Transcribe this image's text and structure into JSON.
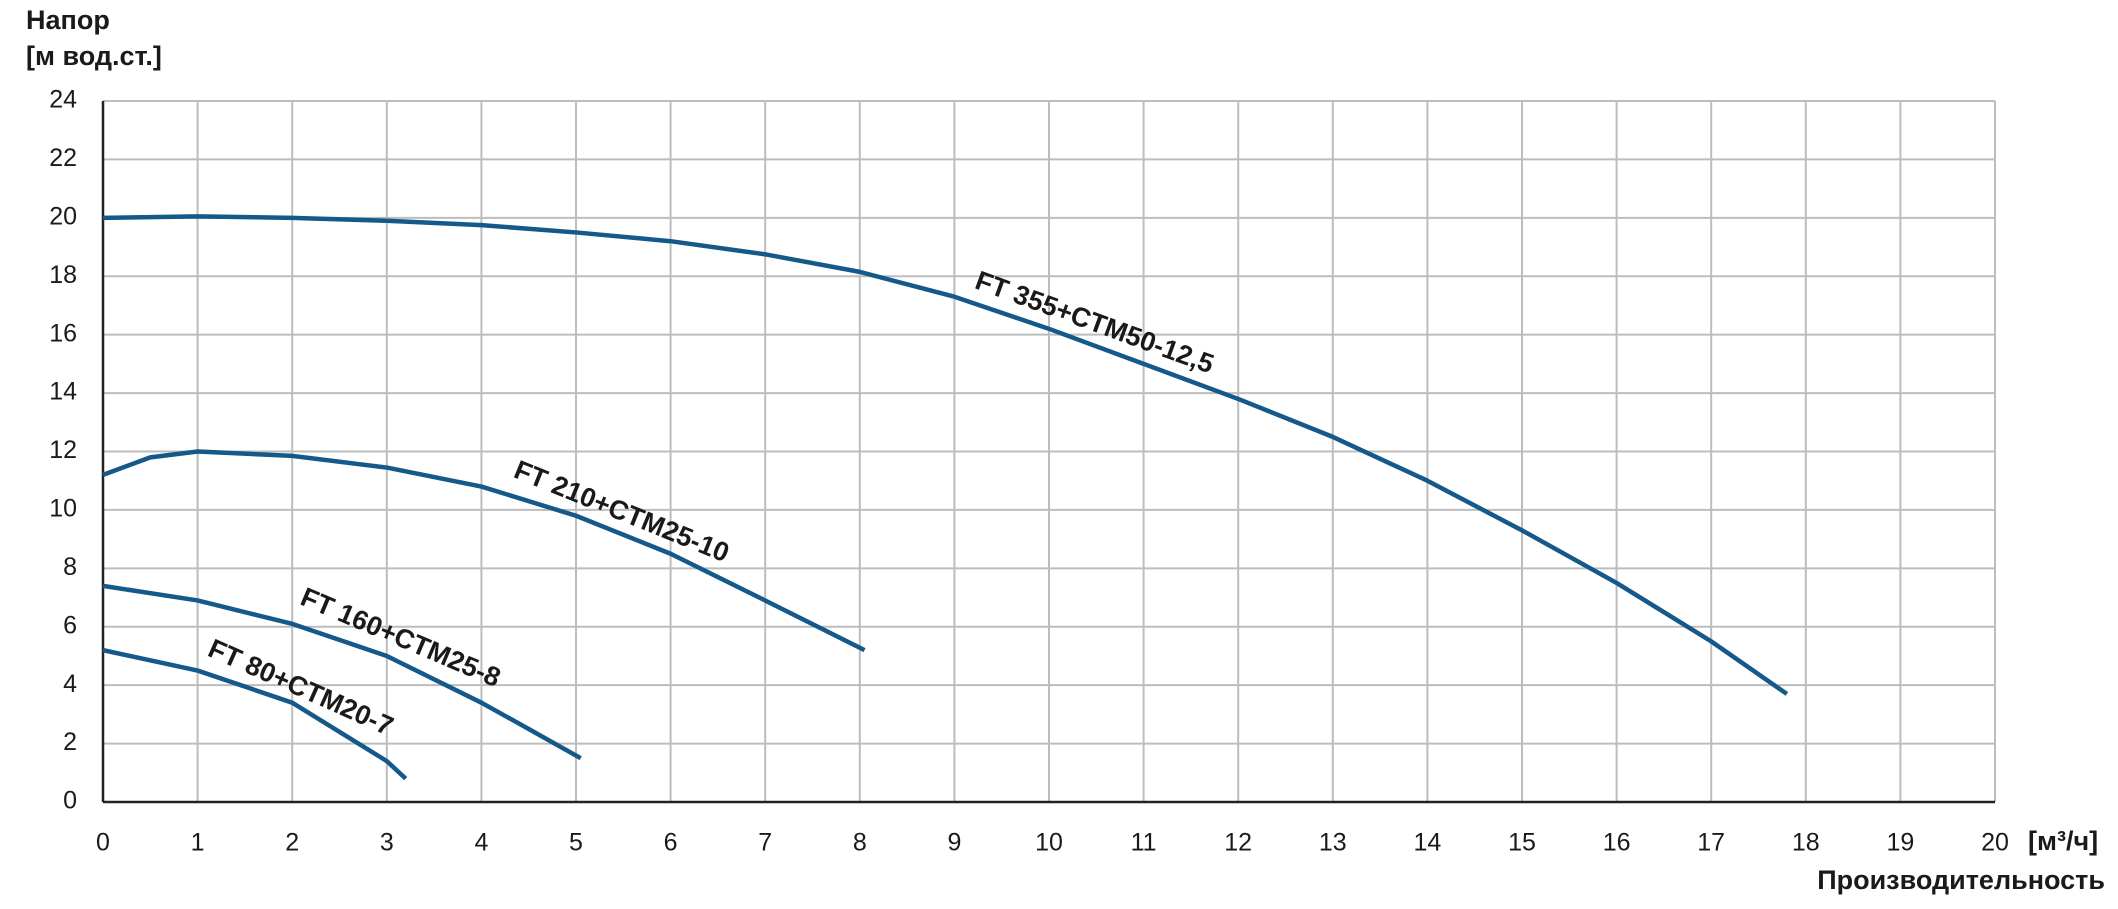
{
  "chart_data": {
    "type": "line",
    "y_label_line1": "Напор",
    "y_label_line2": "[м вод.ст.]",
    "x_unit": "[м³/ч]",
    "x_label": "Производительность",
    "xlim": [
      0,
      20
    ],
    "xticks": [
      0,
      1,
      2,
      3,
      4,
      5,
      6,
      7,
      8,
      9,
      10,
      11,
      12,
      13,
      14,
      15,
      16,
      17,
      18,
      19,
      20
    ],
    "ylim": [
      0,
      24
    ],
    "yticks": [
      0,
      2,
      4,
      6,
      8,
      10,
      12,
      14,
      16,
      18,
      20,
      22,
      24
    ],
    "grid": true,
    "series": [
      {
        "name": "FT 355+CTM50-12,5",
        "color": "#15598a",
        "x": [
          0,
          1,
          2,
          3,
          4,
          5,
          6,
          7,
          8,
          9,
          10,
          11,
          12,
          13,
          14,
          15,
          16,
          17,
          17.8
        ],
        "values": [
          20,
          20.05,
          20,
          19.9,
          19.75,
          19.5,
          19.2,
          18.75,
          18.15,
          17.3,
          16.2,
          15.0,
          13.8,
          12.5,
          11.0,
          9.3,
          7.5,
          5.5,
          3.7
        ]
      },
      {
        "name": "FT 210+CTM25-10",
        "color": "#15598a",
        "x": [
          0,
          0.5,
          1,
          2,
          3,
          4,
          5,
          6,
          7,
          8.05
        ],
        "values": [
          11.2,
          11.8,
          12,
          11.85,
          11.45,
          10.8,
          9.8,
          8.5,
          6.9,
          5.2
        ]
      },
      {
        "name": "FT 160+CTM25-8",
        "color": "#15598a",
        "x": [
          0,
          1,
          2,
          3,
          4,
          4.5,
          5.05
        ],
        "values": [
          7.4,
          6.9,
          6.1,
          5.0,
          3.4,
          2.5,
          1.5
        ]
      },
      {
        "name": "FT 80+CTM20-7",
        "color": "#15598a",
        "x": [
          0,
          1,
          2,
          3,
          3.2
        ],
        "values": [
          5.2,
          4.5,
          3.4,
          1.4,
          0.8
        ]
      }
    ]
  }
}
